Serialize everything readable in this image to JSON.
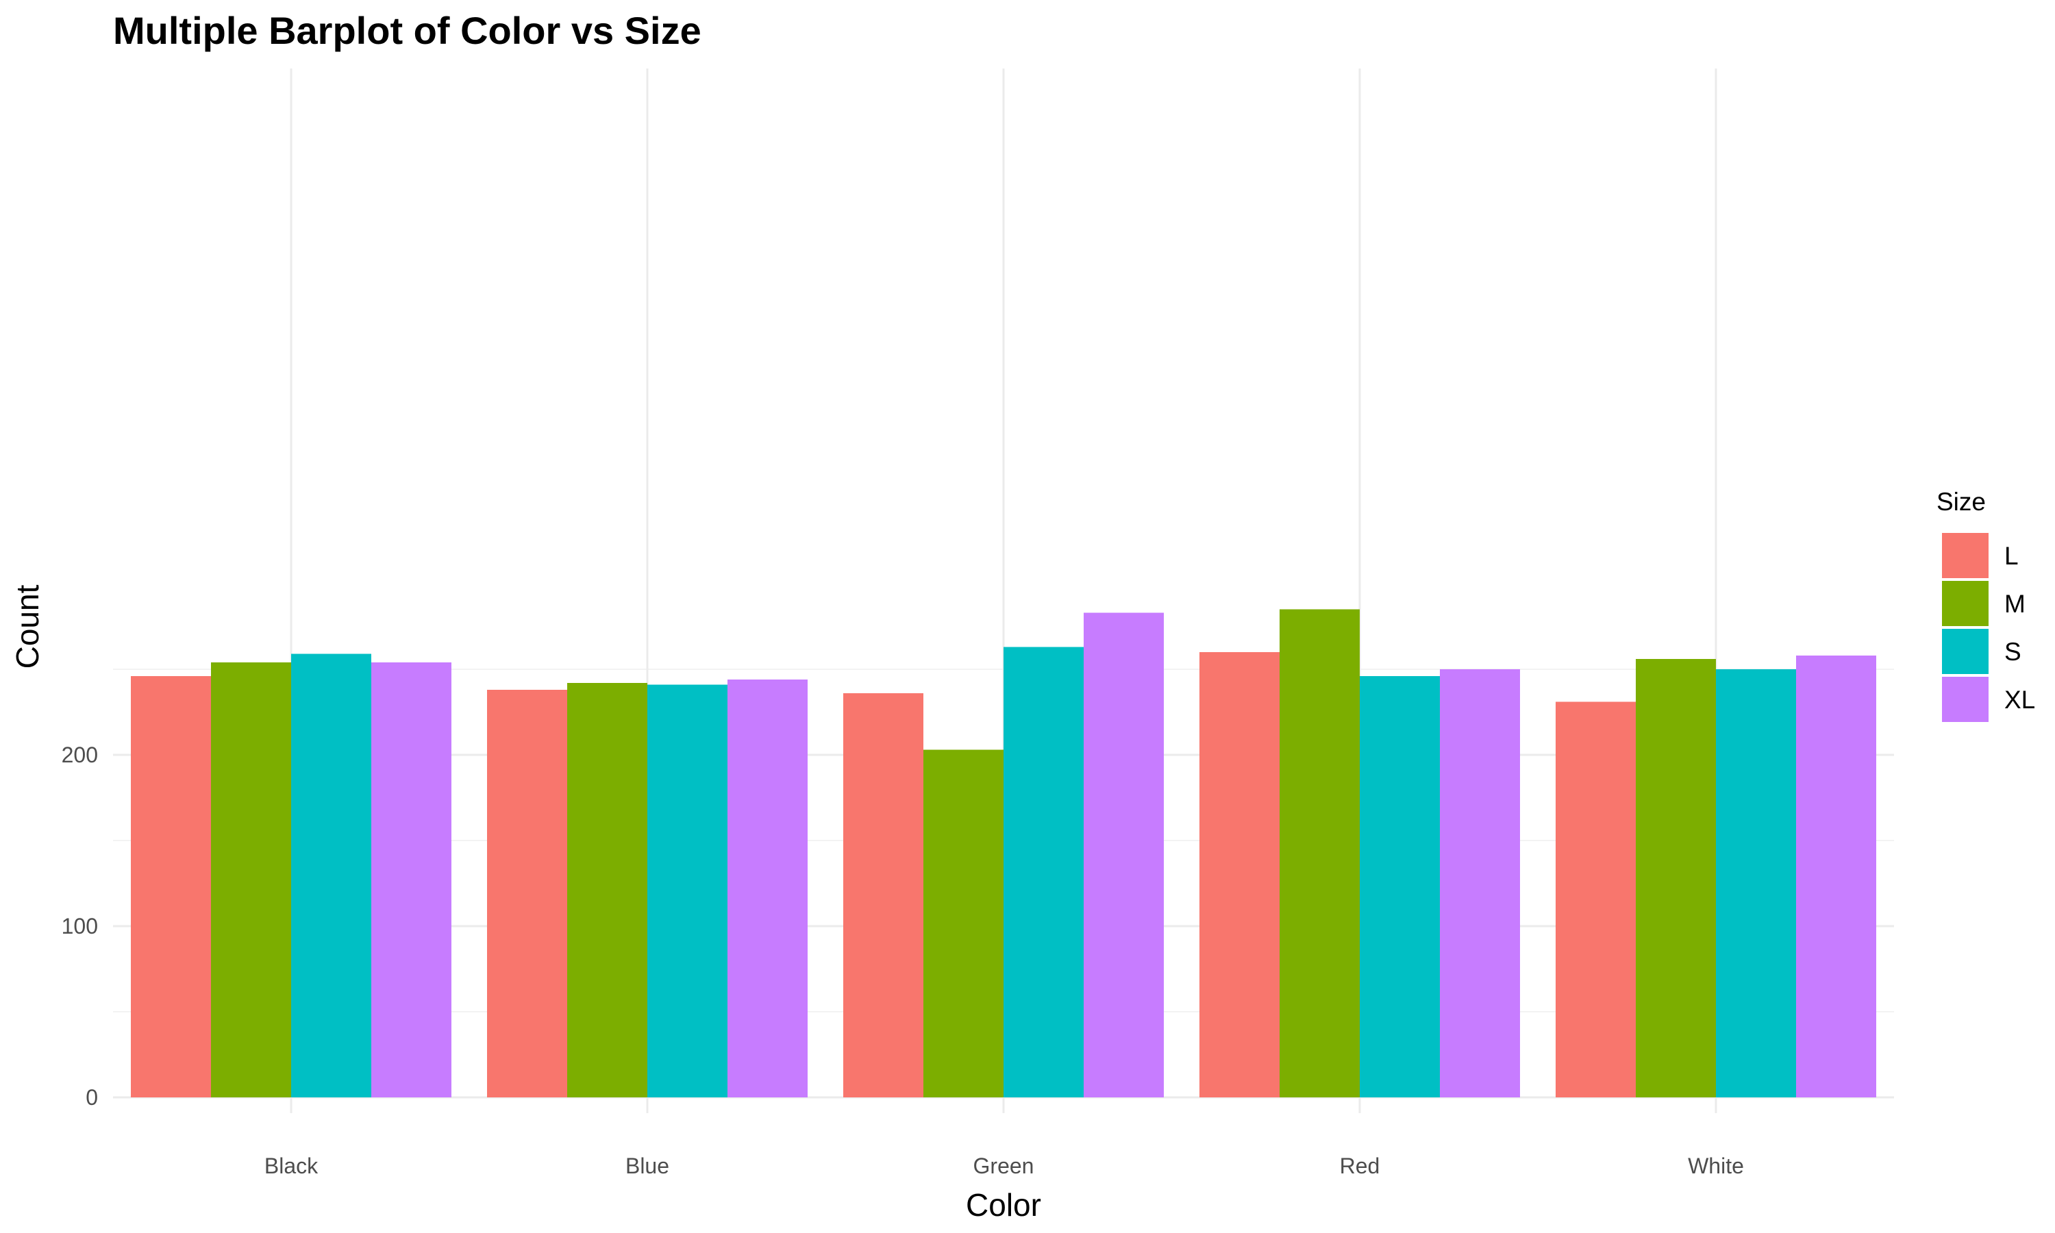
{
  "chart_data": {
    "type": "bar",
    "title": "Multiple Barplot of Color vs Size",
    "xlabel": "Color",
    "ylabel": "Count",
    "categories": [
      "Black",
      "Blue",
      "Green",
      "Red",
      "White"
    ],
    "ylim": [
      0,
      285
    ],
    "yticks": [
      0,
      100,
      200
    ],
    "grid": true,
    "legend": {
      "title": "Size",
      "placement": "right"
    },
    "series": [
      {
        "name": "L",
        "color": "#F8766D",
        "values": [
          246,
          238,
          236,
          260,
          231
        ]
      },
      {
        "name": "M",
        "color": "#7CAE00",
        "values": [
          254,
          242,
          203,
          285,
          256
        ]
      },
      {
        "name": "S",
        "color": "#00BFC4",
        "values": [
          259,
          241,
          263,
          246,
          250
        ]
      },
      {
        "name": "XL",
        "color": "#C77CFF",
        "values": [
          254,
          244,
          283,
          250,
          258
        ]
      }
    ]
  }
}
